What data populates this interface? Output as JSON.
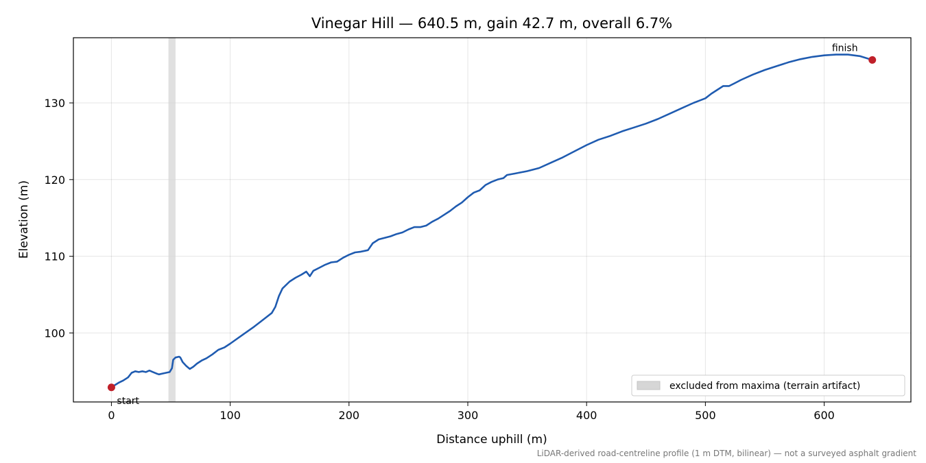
{
  "chart_data": {
    "type": "line",
    "title": "Vinegar Hill — 640.5 m, gain 42.7 m, overall 6.7%",
    "xlabel": "Distance uphill (m)",
    "ylabel": "Elevation (m)",
    "xlim": [
      -32,
      673
    ],
    "ylim": [
      91,
      138.5
    ],
    "xticks": [
      0,
      100,
      200,
      300,
      400,
      500,
      600
    ],
    "yticks": [
      100,
      110,
      120,
      130
    ],
    "grid": true,
    "legend_position": "bottom-right",
    "line_color": "#1f5bb0",
    "marker_color": "#c0202a",
    "band_color": "#d6d6d6",
    "series": [
      {
        "points": [
          [
            0,
            92.9
          ],
          [
            3,
            93.2
          ],
          [
            6,
            93.5
          ],
          [
            10,
            93.8
          ],
          [
            14,
            94.2
          ],
          [
            17,
            94.8
          ],
          [
            20,
            95.0
          ],
          [
            23,
            94.9
          ],
          [
            26,
            95.0
          ],
          [
            29,
            94.9
          ],
          [
            32,
            95.1
          ],
          [
            35,
            94.9
          ],
          [
            38,
            94.7
          ],
          [
            40,
            94.6
          ],
          [
            43,
            94.7
          ],
          [
            46,
            94.8
          ],
          [
            49,
            94.9
          ],
          [
            51,
            95.4
          ],
          [
            52,
            96.5
          ],
          [
            54,
            96.8
          ],
          [
            57,
            96.9
          ],
          [
            58,
            96.8
          ],
          [
            60,
            96.2
          ],
          [
            63,
            95.7
          ],
          [
            66,
            95.3
          ],
          [
            69,
            95.6
          ],
          [
            72,
            96.0
          ],
          [
            76,
            96.4
          ],
          [
            80,
            96.7
          ],
          [
            85,
            97.2
          ],
          [
            90,
            97.8
          ],
          [
            95,
            98.1
          ],
          [
            100,
            98.6
          ],
          [
            110,
            99.7
          ],
          [
            120,
            100.8
          ],
          [
            130,
            102.0
          ],
          [
            135,
            102.6
          ],
          [
            138,
            103.4
          ],
          [
            141,
            104.8
          ],
          [
            144,
            105.8
          ],
          [
            150,
            106.7
          ],
          [
            155,
            107.2
          ],
          [
            160,
            107.6
          ],
          [
            164,
            108.0
          ],
          [
            167,
            107.4
          ],
          [
            170,
            108.1
          ],
          [
            175,
            108.5
          ],
          [
            180,
            108.9
          ],
          [
            185,
            109.2
          ],
          [
            190,
            109.3
          ],
          [
            195,
            109.8
          ],
          [
            200,
            110.2
          ],
          [
            205,
            110.5
          ],
          [
            210,
            110.6
          ],
          [
            213,
            110.7
          ],
          [
            216,
            110.8
          ],
          [
            220,
            111.7
          ],
          [
            225,
            112.2
          ],
          [
            230,
            112.4
          ],
          [
            235,
            112.6
          ],
          [
            240,
            112.9
          ],
          [
            245,
            113.1
          ],
          [
            250,
            113.5
          ],
          [
            255,
            113.8
          ],
          [
            260,
            113.8
          ],
          [
            265,
            114.0
          ],
          [
            270,
            114.5
          ],
          [
            275,
            114.9
          ],
          [
            280,
            115.4
          ],
          [
            285,
            115.9
          ],
          [
            290,
            116.5
          ],
          [
            295,
            117.0
          ],
          [
            300,
            117.7
          ],
          [
            305,
            118.3
          ],
          [
            310,
            118.6
          ],
          [
            315,
            119.3
          ],
          [
            320,
            119.7
          ],
          [
            325,
            120.0
          ],
          [
            330,
            120.2
          ],
          [
            333,
            120.6
          ],
          [
            340,
            120.8
          ],
          [
            350,
            121.1
          ],
          [
            360,
            121.5
          ],
          [
            370,
            122.2
          ],
          [
            380,
            122.9
          ],
          [
            390,
            123.7
          ],
          [
            400,
            124.5
          ],
          [
            410,
            125.2
          ],
          [
            420,
            125.7
          ],
          [
            430,
            126.3
          ],
          [
            440,
            126.8
          ],
          [
            450,
            127.3
          ],
          [
            460,
            127.9
          ],
          [
            470,
            128.6
          ],
          [
            480,
            129.3
          ],
          [
            490,
            130.0
          ],
          [
            500,
            130.6
          ],
          [
            505,
            131.2
          ],
          [
            510,
            131.7
          ],
          [
            515,
            132.2
          ],
          [
            520,
            132.2
          ],
          [
            525,
            132.6
          ],
          [
            530,
            133.0
          ],
          [
            540,
            133.7
          ],
          [
            550,
            134.3
          ],
          [
            560,
            134.8
          ],
          [
            570,
            135.3
          ],
          [
            580,
            135.7
          ],
          [
            590,
            136.0
          ],
          [
            600,
            136.2
          ],
          [
            610,
            136.3
          ],
          [
            620,
            136.3
          ],
          [
            630,
            136.1
          ],
          [
            640.5,
            135.6
          ]
        ]
      }
    ],
    "markers": [
      {
        "x": 0,
        "y": 92.9,
        "label": "start"
      },
      {
        "x": 640.5,
        "y": 135.6,
        "label": "finish"
      }
    ],
    "excluded_band": {
      "x_start": 48,
      "x_end": 54
    },
    "legend": {
      "entries": [
        "excluded from maxima (terrain artifact)"
      ]
    },
    "footnote": "LiDAR-derived road-centreline profile (1 m DTM, bilinear) — not a surveyed asphalt gradient"
  }
}
